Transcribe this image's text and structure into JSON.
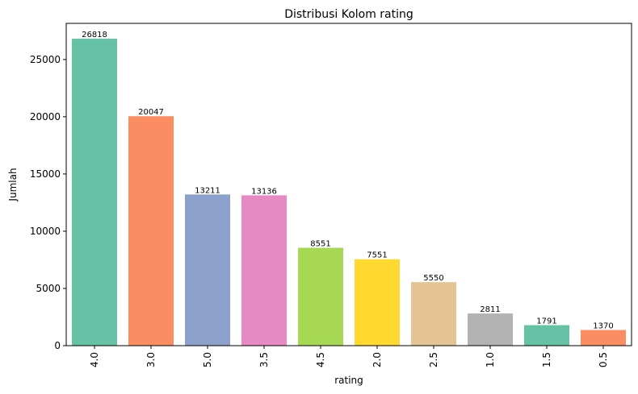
{
  "chart_data": {
    "type": "bar",
    "title": "Distribusi Kolom rating",
    "xlabel": "rating",
    "ylabel": "Jumlah",
    "categories": [
      "4.0",
      "3.0",
      "5.0",
      "3.5",
      "4.5",
      "2.0",
      "2.5",
      "1.0",
      "1.5",
      "0.5"
    ],
    "values": [
      26818,
      20047,
      13211,
      13136,
      8551,
      7551,
      5550,
      2811,
      1791,
      1370
    ],
    "colors": [
      "#66c2a5",
      "#fc8d62",
      "#8da0cb",
      "#e78ac3",
      "#a6d854",
      "#ffd92f",
      "#e5c494",
      "#b3b3b3",
      "#66c2a5",
      "#fc8d62"
    ],
    "ylim": [
      0,
      28159
    ],
    "yticks": [
      0,
      5000,
      10000,
      15000,
      20000,
      25000
    ],
    "grid": false,
    "legend": "none"
  }
}
